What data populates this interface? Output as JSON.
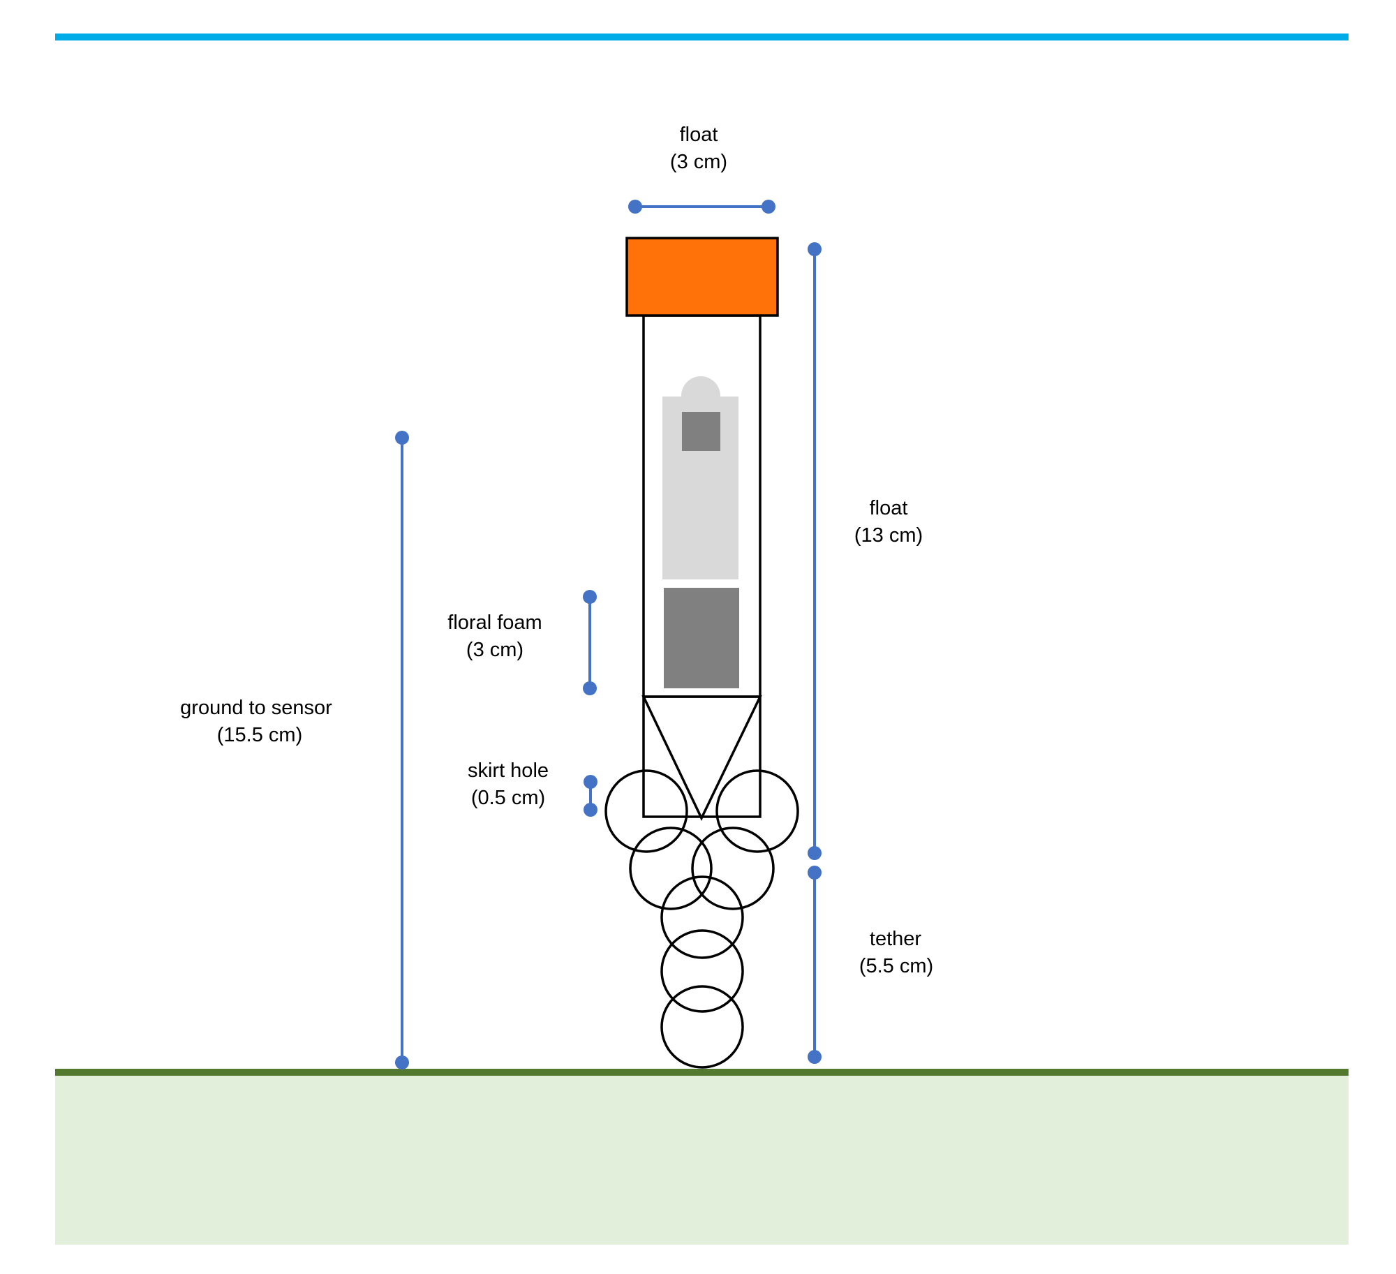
{
  "colors": {
    "water_line": "#00ACE8",
    "ground_line": "#53792F",
    "ground_fill": "#E2EFDA",
    "float_cap": "#FF7209",
    "dimension": "#4472C4",
    "sensor_light": "#D9D9D9",
    "sensor_dark": "#808080",
    "outline": "#000000"
  },
  "labels": {
    "float_width": {
      "name": "float",
      "value": "(3 cm)"
    },
    "float_height": {
      "name": "float",
      "value": "(13 cm)"
    },
    "floral_foam": {
      "name": "floral foam",
      "value": "(3 cm)"
    },
    "ground_to_sensor": {
      "name": "ground to sensor",
      "value": "(15.5 cm)"
    },
    "skirt_hole": {
      "name": "skirt hole",
      "value": "(0.5 cm)"
    },
    "tether": {
      "name": "tether",
      "value": "(5.5 cm)"
    }
  }
}
